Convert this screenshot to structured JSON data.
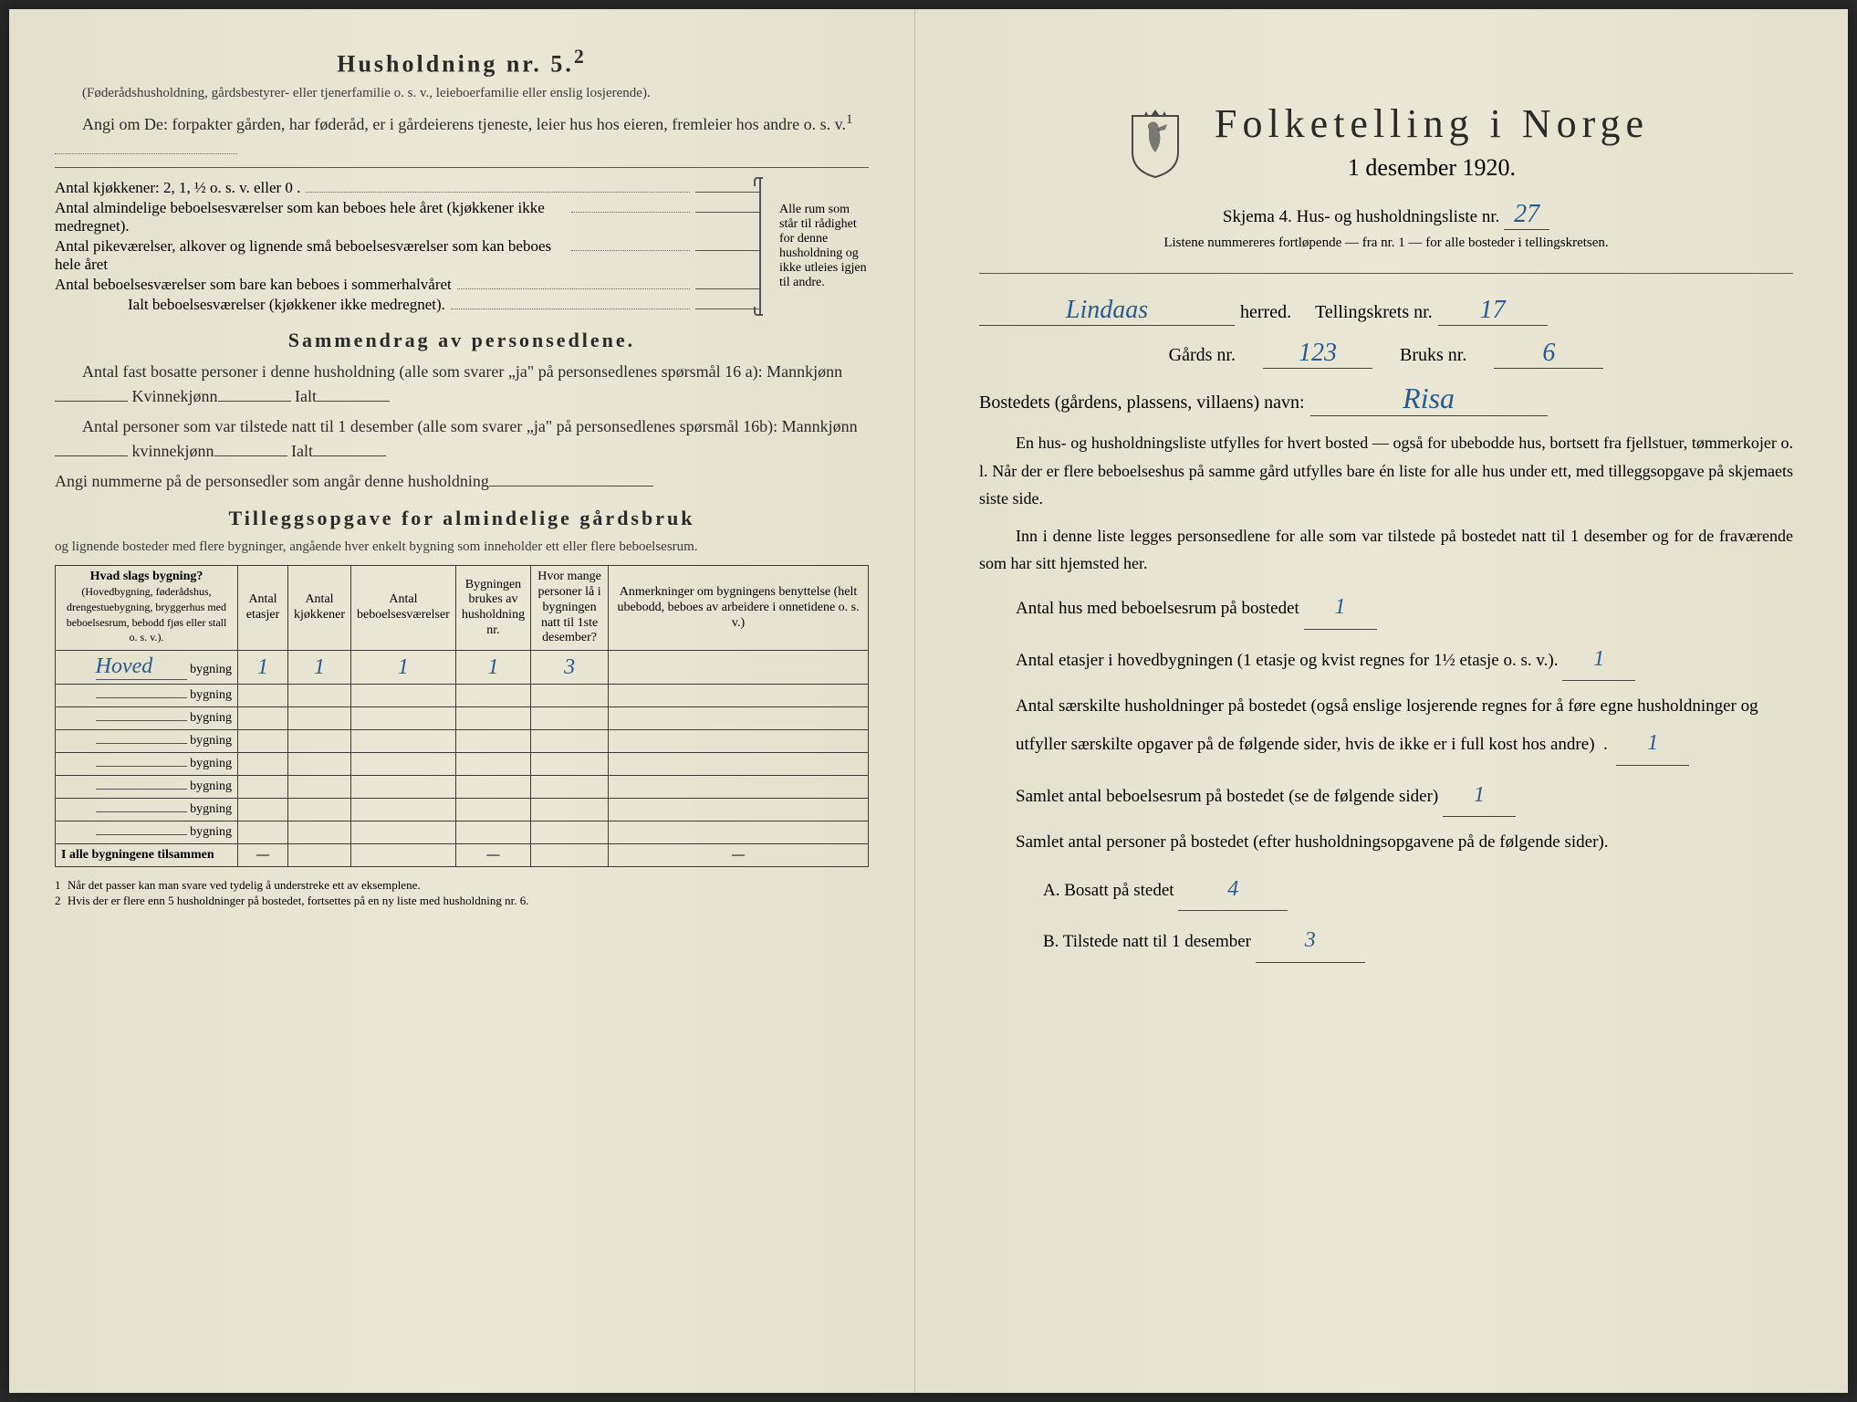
{
  "leftPage": {
    "heading5": "Husholdning nr. 5.",
    "heading5Sup": "2",
    "sub5": "(Føderådshusholdning, gårdsbestyrer- eller tjenerfamilie o. s. v., leieboerfamilie eller enslig losjerende).",
    "angi": "Angi om De: forpakter gården, har føderåd, er i gårdeierens tjeneste, leier hus hos eieren, fremleier hos andre o. s. v.",
    "angiSup": "1",
    "kitchens": "Antal kjøkkener: 2, 1, ½ o. s. v. eller 0 .",
    "rooms1": "Antal almindelige beboelsesværelser som kan beboes hele året (kjøkkener ikke medregnet).",
    "rooms2": "Antal pikeværelser, alkover og lignende små beboelsesværelser som kan beboes hele året",
    "rooms3": "Antal beboelsesværelser som bare kan beboes i sommerhalvåret",
    "ialt": "Ialt beboelsesværelser (kjøkkener ikke medregnet).",
    "braceText": "Alle rum som står til rådighet for denne husholdning og ikke utleies igjen til andre.",
    "sammendragHeading": "Sammendrag av personsedlene.",
    "s1": "Antal fast bosatte personer i denne husholdning (alle som svarer „ja\" på personsedlenes spørsmål 16 a): Mannkjønn",
    "s1b": "Kvinnekjønn",
    "s1c": "Ialt",
    "s2": "Antal personer som var tilstede natt til 1 desember (alle som svarer „ja\" på personsedlenes spørsmål 16b): Mannkjønn",
    "s2b": "kvinnekjønn",
    "s2c": "Ialt",
    "s3": "Angi nummerne på de personsedler som angår denne husholdning",
    "tilleggHeading": "Tilleggsopgave for almindelige gårdsbruk",
    "tilleggSub": "og lignende bosteder med flere bygninger, angående hver enkelt bygning som inneholder ett eller flere beboelsesrum.",
    "tableHeaders": {
      "col1a": "Hvad slags bygning?",
      "col1b": "(Hovedbygning, føderådshus, drengestuebygning, bryggerhus med beboelsesrum, bebodd fjøs eller stall o. s. v.).",
      "col2": "Antal etasjer",
      "col3": "Antal kjøkkener",
      "col4": "Antal beboelsesværelser",
      "col5": "Bygningen brukes av husholdning nr.",
      "col6": "Hvor mange personer lå i bygningen natt til 1ste desember?",
      "col7": "Anmerkninger om bygningens benyttelse (helt ubebodd, beboes av arbeidere i onnetidene o. s. v.)"
    },
    "bygningLabel": "bygning",
    "row1": {
      "prefix": "Hoved",
      "c2": "1",
      "c3": "1",
      "c4": "1",
      "c5": "1",
      "c6": "3",
      "c7": ""
    },
    "emptyRows": 7,
    "tfoot": "I alle bygningene tilsammen",
    "dash": "—",
    "footnote1": "Når det passer kan man svare ved tydelig å understreke ett av eksemplene.",
    "footnote2": "Hvis der er flere enn 5 husholdninger på bostedet, fortsettes på en ny liste med husholdning nr. 6."
  },
  "rightPage": {
    "titleMain": "Folketelling i Norge",
    "titleSub": "1 desember 1920.",
    "schemaLabel": "Skjema 4.  Hus- og husholdningsliste nr.",
    "schemaNr": "27",
    "instr": "Listene nummereres fortløpende — fra nr. 1 — for alle bosteder i tellingskretsen.",
    "herred": "Lindaas",
    "herredLabel": "herred.",
    "tellingskretsLabel": "Tellingskrets nr.",
    "tellingskretsNr": "17",
    "gardsLabel": "Gårds nr.",
    "gardsNr": "123",
    "bruksLabel": "Bruks nr.",
    "bruksNr": "6",
    "bostedLabel": "Bostedets (gårdens, plassens, villaens) navn:",
    "bostedName": "Risa",
    "para1": "En hus- og husholdningsliste utfylles for hvert bosted — også for ubebodde hus, bortsett fra fjellstuer, tømmerkojer o. l. Når der er flere beboelseshus på samme gård utfylles bare én liste for alle hus under ett, med tilleggsopgave på skjemaets siste side.",
    "para2": "Inn i denne liste legges personsedlene for alle som var tilstede på bostedet natt til 1 desember og for de fraværende som har sitt hjemsted her.",
    "q1": "Antal hus med beboelsesrum på bostedet",
    "a1": "1",
    "q2a": "Antal etasjer i hovedbygningen (1 etasje og kvist regnes for 1½ etasje o. s. v.).",
    "a2": "1",
    "q3": "Antal særskilte husholdninger på bostedet (også enslige losjerende regnes for å føre egne husholdninger og utfyller særskilte opgaver på de følgende sider, hvis de ikke er i full kost hos andre)",
    "a3": "1",
    "q4": "Samlet antal beboelsesrum på bostedet (se de følgende sider)",
    "a4": "1",
    "q5": "Samlet antal personer på bostedet (efter husholdningsopgavene på de følgende sider).",
    "qA": "A.  Bosatt på stedet",
    "aA": "4",
    "qB": "B.  Tilstede natt til 1 desember",
    "aB": "3"
  },
  "colors": {
    "paper": "#e8e4d4",
    "ink": "#2a2a28",
    "handwriting": "#2a5a8a",
    "border": "#3a3a38"
  }
}
